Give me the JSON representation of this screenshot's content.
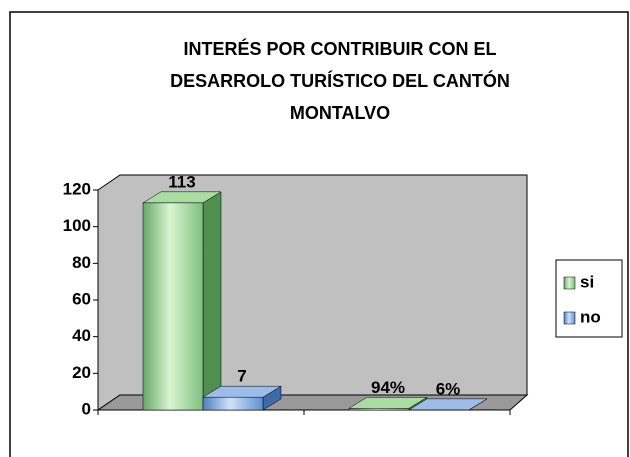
{
  "chart_data": {
    "type": "bar3d",
    "title": [
      "INTERÉS POR CONTRIBUIR CON EL",
      "DESARROLO TURÍSTICO DEL CANTÓN",
      "MONTALVO"
    ],
    "categories": [
      null,
      null
    ],
    "series": [
      {
        "name": "si",
        "color": "#8fd08f",
        "values": [
          113,
          0.94
        ],
        "value_labels": [
          "113",
          "94%"
        ]
      },
      {
        "name": "no",
        "color": "#7aa6e0",
        "values": [
          7,
          0.06
        ],
        "value_labels": [
          "7",
          "6%"
        ]
      }
    ],
    "ylim": [
      0,
      120
    ],
    "yticks": [
      0,
      20,
      40,
      60,
      80,
      100,
      120
    ],
    "legend": "right"
  }
}
